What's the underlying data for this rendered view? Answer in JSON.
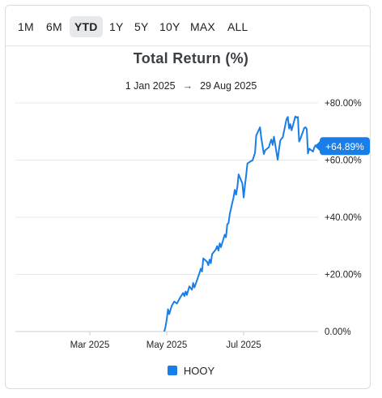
{
  "tabs": [
    {
      "label": "1M"
    },
    {
      "label": "6M"
    },
    {
      "label": "YTD"
    },
    {
      "label": "1Y"
    },
    {
      "label": "5Y"
    },
    {
      "label": "10Y"
    },
    {
      "label": "MAX"
    },
    {
      "label": "ALL"
    }
  ],
  "active_tab": "YTD",
  "colors": {
    "series": "#1a7ee8",
    "grid": "#e6e8eb",
    "badge": "#1a7ee8"
  },
  "chart_data": {
    "type": "line",
    "title": "Total Return (%)",
    "date_range": {
      "start": "1 Jan 2025",
      "arrow": "→",
      "end": "29 Aug 2025"
    },
    "xlabel": "",
    "ylabel": "",
    "xlim": [
      "2025-01-01",
      "2025-08-29"
    ],
    "ylim": [
      0,
      80
    ],
    "y_ticks": [
      {
        "value": 0,
        "label": "0.00%"
      },
      {
        "value": 20,
        "label": "+20.00%"
      },
      {
        "value": 40,
        "label": "+40.00%"
      },
      {
        "value": 60,
        "label": "+60.00%"
      },
      {
        "value": 80,
        "label": "+80.00%"
      }
    ],
    "x_ticks": [
      {
        "date": "2025-03-01",
        "label": "Mar 2025"
      },
      {
        "date": "2025-05-01",
        "label": "May 2025"
      },
      {
        "date": "2025-07-01",
        "label": "Jul 2025"
      }
    ],
    "grid": true,
    "legend_position": "bottom",
    "last_value_label": "+64.89%",
    "series": [
      {
        "name": "HOOY",
        "color": "#1a7ee8",
        "points": [
          [
            "2025-04-29",
            0
          ],
          [
            "2025-04-30",
            1.5
          ],
          [
            "2025-05-01",
            4.2
          ],
          [
            "2025-05-02",
            7.8
          ],
          [
            "2025-05-03",
            6.1
          ],
          [
            "2025-05-05",
            9.0
          ],
          [
            "2025-05-07",
            10.5
          ],
          [
            "2025-05-09",
            9.8
          ],
          [
            "2025-05-12",
            12.1
          ],
          [
            "2025-05-14",
            13.5
          ],
          [
            "2025-05-15",
            12.4
          ],
          [
            "2025-05-16",
            14.0
          ],
          [
            "2025-05-17",
            12.8
          ],
          [
            "2025-05-19",
            15.8
          ],
          [
            "2025-05-21",
            14.6
          ],
          [
            "2025-05-22",
            17.0
          ],
          [
            "2025-05-23",
            15.4
          ],
          [
            "2025-05-27",
            20.5
          ],
          [
            "2025-05-28",
            22.0
          ],
          [
            "2025-05-29",
            21.0
          ],
          [
            "2025-05-30",
            25.6
          ],
          [
            "2025-06-02",
            24.4
          ],
          [
            "2025-06-03",
            23.2
          ],
          [
            "2025-06-04",
            25.2
          ],
          [
            "2025-06-05",
            23.9
          ],
          [
            "2025-06-06",
            27.1
          ],
          [
            "2025-06-09",
            28.8
          ],
          [
            "2025-06-10",
            29.9
          ],
          [
            "2025-06-11",
            28.3
          ],
          [
            "2025-06-12",
            30.9
          ],
          [
            "2025-06-13",
            29.5
          ],
          [
            "2025-06-16",
            33.9
          ],
          [
            "2025-06-17",
            33.0
          ],
          [
            "2025-06-18",
            37.5
          ],
          [
            "2025-06-19",
            38.0
          ],
          [
            "2025-06-20",
            41.1
          ],
          [
            "2025-06-23",
            47.0
          ],
          [
            "2025-06-24",
            49.6
          ],
          [
            "2025-06-25",
            47.9
          ],
          [
            "2025-06-26",
            50.6
          ],
          [
            "2025-06-27",
            55.0
          ],
          [
            "2025-06-30",
            51.8
          ],
          [
            "2025-07-01",
            46.9
          ],
          [
            "2025-07-02",
            51.0
          ],
          [
            "2025-07-03",
            54.8
          ],
          [
            "2025-07-04",
            58.8
          ],
          [
            "2025-07-07",
            59.7
          ],
          [
            "2025-07-08",
            59.9
          ],
          [
            "2025-07-09",
            61.1
          ],
          [
            "2025-07-10",
            62.5
          ],
          [
            "2025-07-11",
            68.6
          ],
          [
            "2025-07-14",
            71.5
          ],
          [
            "2025-07-15",
            67.6
          ],
          [
            "2025-07-16",
            65.0
          ],
          [
            "2025-07-17",
            62.1
          ],
          [
            "2025-07-18",
            63.4
          ],
          [
            "2025-07-21",
            64.5
          ],
          [
            "2025-07-22",
            66.1
          ],
          [
            "2025-07-23",
            67.2
          ],
          [
            "2025-07-24",
            65.3
          ],
          [
            "2025-07-25",
            68.2
          ],
          [
            "2025-07-28",
            60.1
          ],
          [
            "2025-07-29",
            63.6
          ],
          [
            "2025-07-30",
            66.8
          ],
          [
            "2025-07-31",
            67.5
          ],
          [
            "2025-08-01",
            68.0
          ],
          [
            "2025-08-04",
            74.3
          ],
          [
            "2025-08-05",
            75.1
          ],
          [
            "2025-08-06",
            71.0
          ],
          [
            "2025-08-07",
            72.6
          ],
          [
            "2025-08-08",
            70.4
          ],
          [
            "2025-08-11",
            75.3
          ],
          [
            "2025-08-12",
            74.9
          ],
          [
            "2025-08-13",
            75.1
          ],
          [
            "2025-08-14",
            66.5
          ],
          [
            "2025-08-15",
            67.5
          ],
          [
            "2025-08-18",
            71.2
          ],
          [
            "2025-08-19",
            71.5
          ],
          [
            "2025-08-20",
            70.9
          ],
          [
            "2025-08-21",
            62.3
          ],
          [
            "2025-08-22",
            64.0
          ],
          [
            "2025-08-25",
            63.0
          ],
          [
            "2025-08-26",
            64.4
          ],
          [
            "2025-08-27",
            65.2
          ],
          [
            "2025-08-28",
            64.6
          ],
          [
            "2025-08-29",
            64.89
          ]
        ]
      }
    ]
  }
}
